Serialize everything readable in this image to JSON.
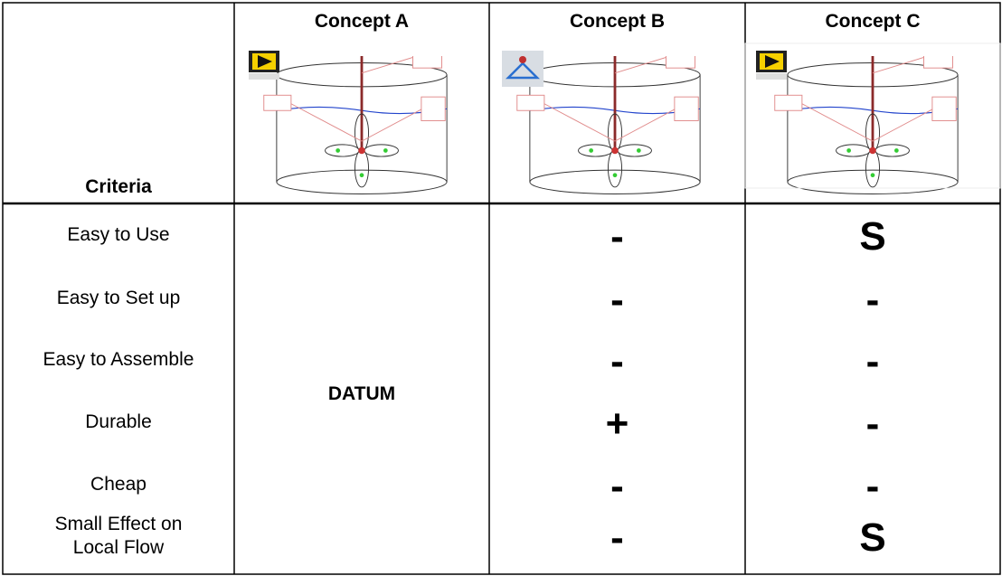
{
  "header": {
    "criteria": "Criteria",
    "concepts": [
      "Concept A",
      "Concept B",
      "Concept C"
    ]
  },
  "datum": "DATUM",
  "rows": [
    {
      "criterion": "Easy to Use",
      "concept_b": "-",
      "concept_c": "S"
    },
    {
      "criterion": "Easy to Set up",
      "concept_b": "-",
      "concept_c": "-"
    },
    {
      "criterion": "Easy to Assemble",
      "concept_b": "-",
      "concept_c": "-"
    },
    {
      "criterion": "Durable",
      "concept_b": "+",
      "concept_c": "-"
    },
    {
      "criterion": "Cheap",
      "concept_b": "-",
      "concept_c": "-"
    },
    {
      "criterion": "Small Effect on Local Flow",
      "concept_b": "-",
      "concept_c": "S"
    }
  ]
}
